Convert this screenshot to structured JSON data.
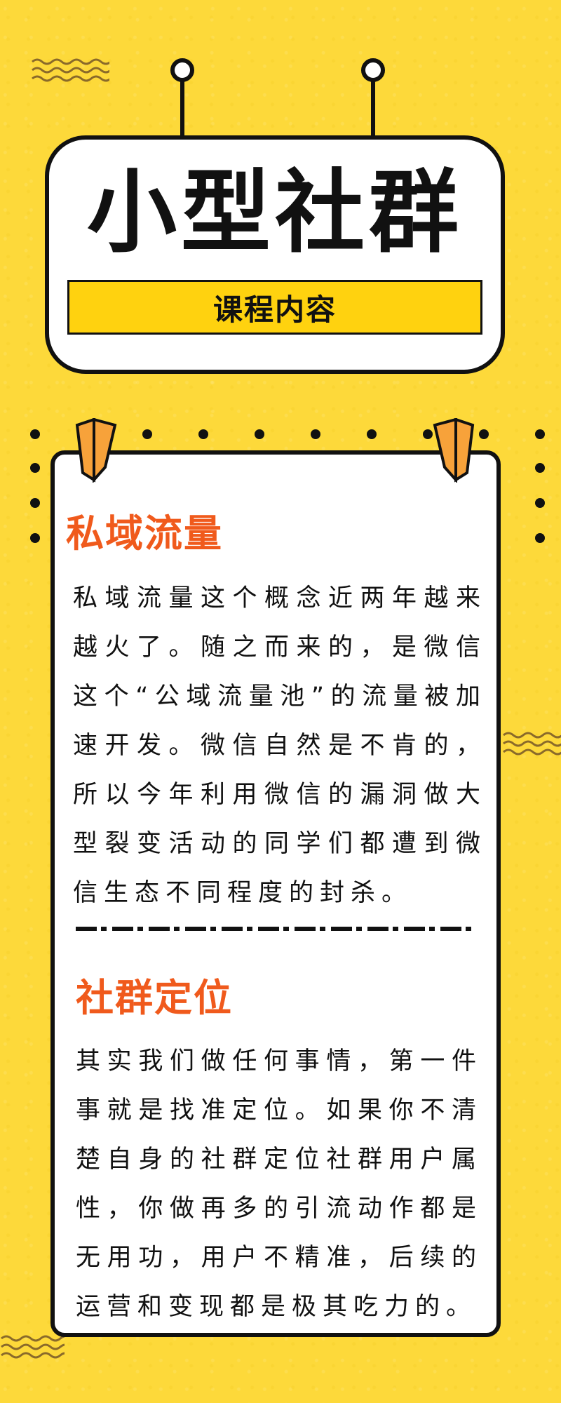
{
  "header": {
    "title": "小型社群",
    "subtitle": "课程内容"
  },
  "sections": [
    {
      "title": "私域流量",
      "body": "私域流量这个概念近两年越来越火了。随之而来的，是微信这个“公域流量池”的流量被加速开发。微信自然是不肯的，所以今年利用微信的漏洞做大型裂变活动的同学们都遭到微信生态不同程度的封杀。"
    },
    {
      "title": "社群定位",
      "body": "其实我们做任何事情，第一件事就是找准定位。如果你不清楚自身的社群定位社群用户属性，你做再多的引流动作都是无用功，用户不精准，后续的运营和变现都是极其吃力的。"
    }
  ],
  "colors": {
    "background": "#fdd93a",
    "band": "#ffd20f",
    "accent": "#f05a1c",
    "clip": "#f7a23a",
    "ink": "#111111"
  }
}
